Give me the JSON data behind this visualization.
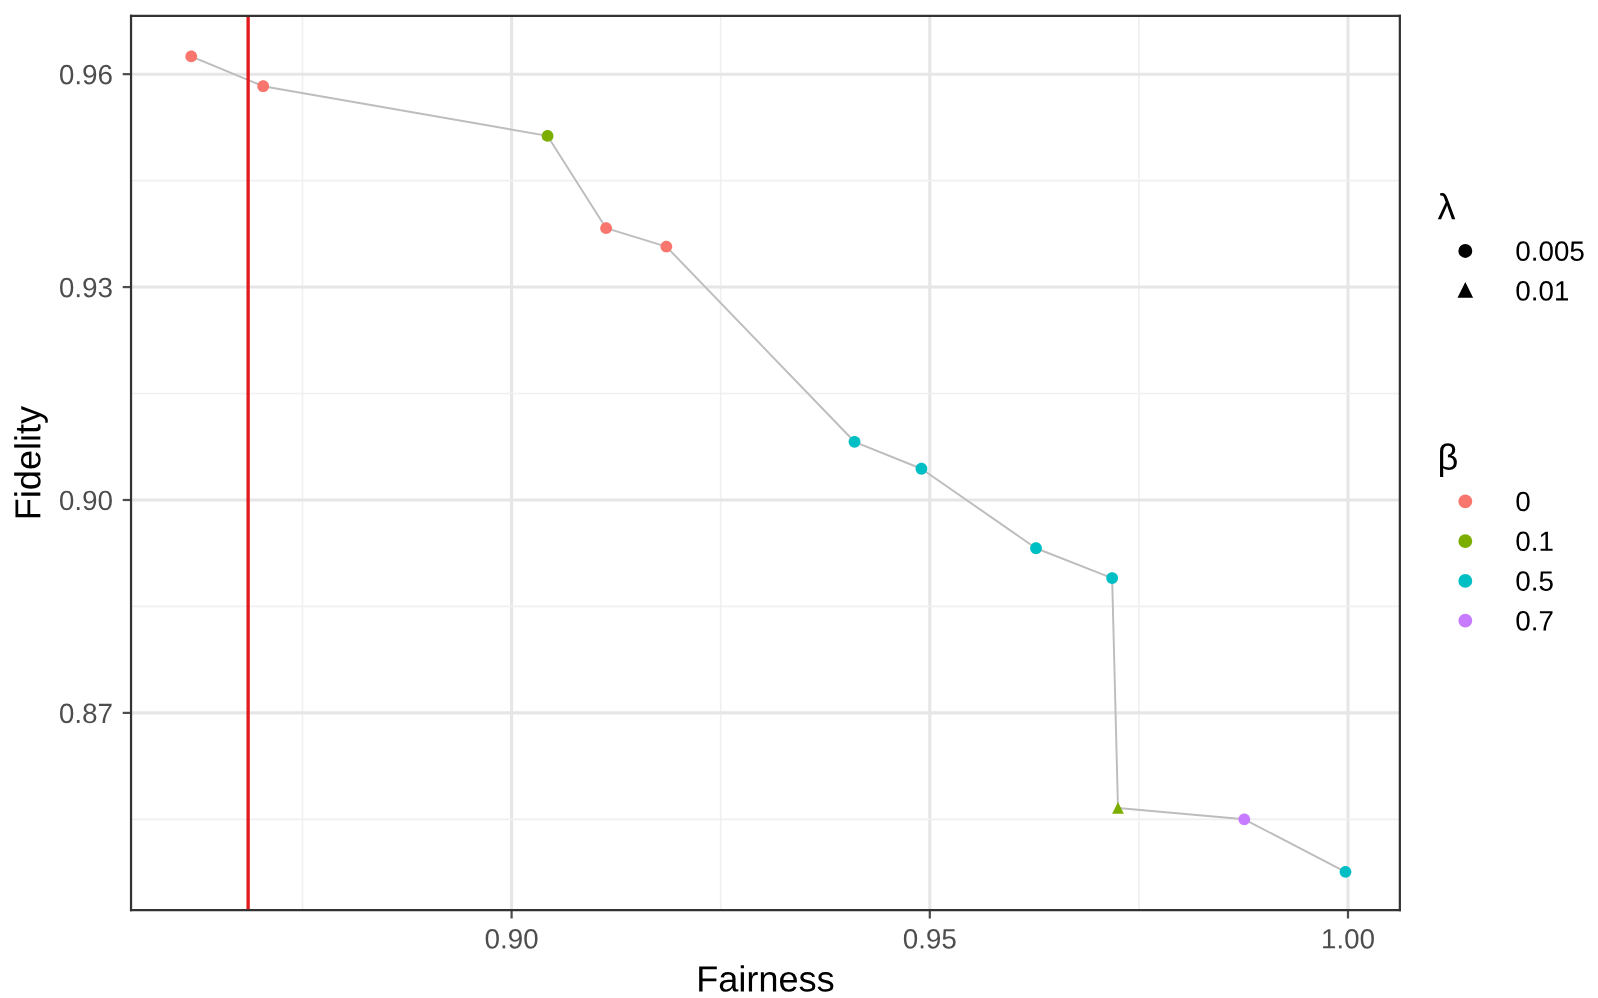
{
  "chart_data": {
    "type": "scatter",
    "xlabel": "Fairness",
    "ylabel": "Fidelity",
    "legend_title": [
      "λ",
      "β"
    ],
    "annotations": [
      "0.005",
      "0.01"
    ],
    "series": [
      {
        "type": "line",
        "color": "#bdbdbd",
        "x": [
          0.8617,
          0.8703,
          0.9043,
          0.9113,
          0.9185,
          0.941,
          0.949,
          0.9627,
          0.9718,
          0.9725,
          0.9876,
          0.9997
        ],
        "values": [
          0.9625,
          0.9583,
          0.9513,
          0.9383,
          0.9357,
          0.9082,
          0.9044,
          0.8932,
          0.889,
          0.8566,
          0.855,
          0.8476
        ]
      },
      {
        "name": "0",
        "color": "#f8766d",
        "marker": "circle",
        "x": [
          0.8617,
          0.8703,
          0.9113,
          0.9185
        ],
        "values": [
          0.9625,
          0.9583,
          0.9383,
          0.9357
        ]
      },
      {
        "name": "0.1",
        "color": "#7cae00",
        "marker": "circle",
        "x": [
          0.9043
        ],
        "values": [
          0.9513
        ]
      },
      {
        "name": "0.5",
        "color": "#00bfc4",
        "marker": "circle",
        "x": [
          0.941,
          0.949,
          0.9627,
          0.9718,
          0.9997
        ],
        "values": [
          0.9082,
          0.9044,
          0.8932,
          0.889,
          0.8476
        ]
      },
      {
        "name": "0.7",
        "color": "#c77cff",
        "marker": "circle",
        "x": [
          0.9876
        ],
        "values": [
          0.855
        ]
      },
      {
        "color": "#7cae00",
        "marker": "triangle",
        "x": [
          0.9725
        ],
        "values": [
          0.8566
        ]
      }
    ],
    "ref_lines": [
      {
        "axis": "x",
        "value": 0.8685,
        "color": "#e31a1c"
      }
    ],
    "xlim": [
      0.8545,
      1.0062
    ],
    "xticks": [
      {
        "value": 0.9,
        "label": "0.90"
      },
      0.95,
      {
        "value": 1.0,
        "label": "1.00"
      }
    ],
    "ylim": [
      0.8422,
      0.9682
    ],
    "yticks": [
      0.87,
      {
        "value": 0.9,
        "label": "0.90"
      },
      0.93,
      0.96
    ],
    "grid": true,
    "legend": "right"
  }
}
